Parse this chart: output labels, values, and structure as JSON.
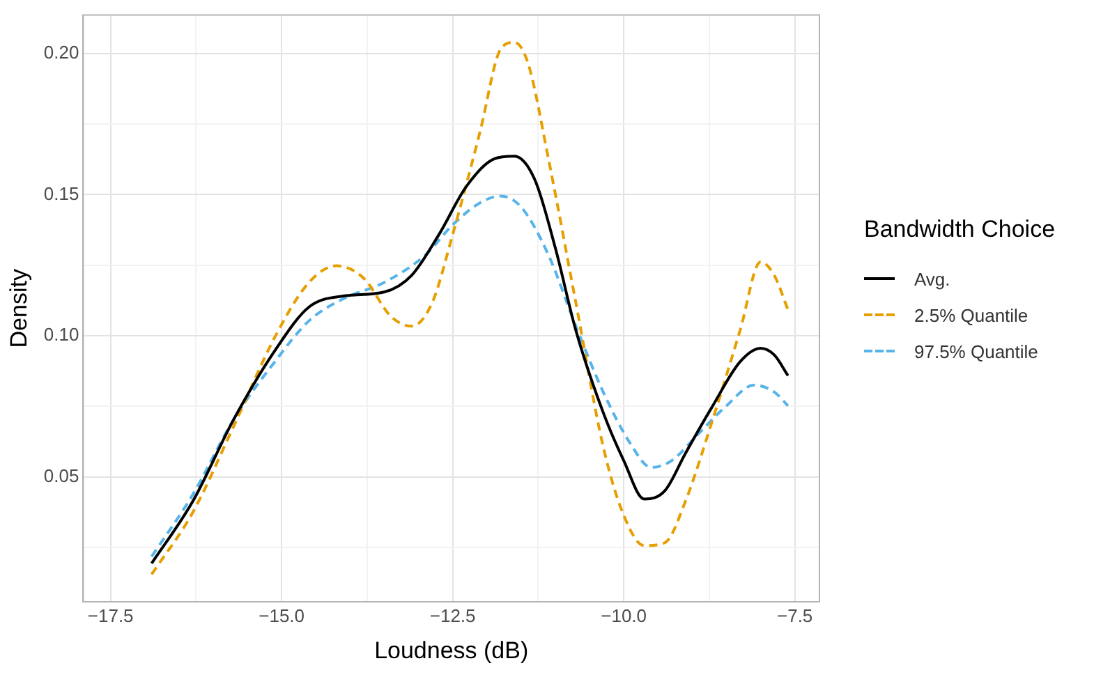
{
  "chart_data": {
    "type": "line",
    "xlabel": "Loudness (dB)",
    "ylabel": "Density",
    "legend_title": "Bandwidth Choice",
    "legend": "right",
    "grid": true,
    "xlim": [
      -17.9,
      -7.14
    ],
    "ylim": [
      0.0058,
      0.2136
    ],
    "xticks": [
      {
        "value": -17.5,
        "label": "−17.5"
      },
      {
        "value": -16.25,
        "label": null
      },
      {
        "value": -15,
        "label": "−15.0"
      },
      {
        "value": -13.75,
        "label": null
      },
      {
        "value": -12.5,
        "label": "−12.5"
      },
      {
        "value": -11.25,
        "label": null
      },
      {
        "value": -10,
        "label": "−10.0"
      },
      {
        "value": -8.75,
        "label": null
      },
      {
        "value": -7.5,
        "label": "−7.5"
      }
    ],
    "yticks": [
      {
        "value": 0.025,
        "label": null
      },
      {
        "value": 0.05,
        "label": "0.05"
      },
      {
        "value": 0.075,
        "label": null
      },
      {
        "value": 0.1,
        "label": "0.10"
      },
      {
        "value": 0.125,
        "label": null
      },
      {
        "value": 0.15,
        "label": "0.15"
      },
      {
        "value": 0.175,
        "label": null
      },
      {
        "value": 0.2,
        "label": "0.20"
      }
    ],
    "series": [
      {
        "name": "Avg.",
        "color": "#000000",
        "line_style": "solid",
        "x": [
          -16.9,
          -16.3,
          -15.7,
          -15.1,
          -14.6,
          -14.1,
          -13.5,
          -13.1,
          -12.7,
          -12.3,
          -11.9,
          -11.6,
          -11.3,
          -11.0,
          -10.7,
          -10.3,
          -10.0,
          -9.7,
          -9.4,
          -9.1,
          -8.7,
          -8.3,
          -8.0,
          -7.8,
          -7.6
        ],
        "values": [
          0.0194,
          0.0413,
          0.0704,
          0.0947,
          0.1102,
          0.1141,
          0.1155,
          0.1214,
          0.1359,
          0.1529,
          0.1626,
          0.1636,
          0.1553,
          0.1311,
          0.1019,
          0.0728,
          0.0558,
          0.0422,
          0.0451,
          0.0583,
          0.0752,
          0.0908,
          0.0956,
          0.0932,
          0.0859
        ]
      },
      {
        "name": "2.5% Quantile",
        "color": "#e69f00",
        "line_style": "dashed",
        "x": [
          -16.9,
          -16.3,
          -15.7,
          -15.1,
          -14.6,
          -14.2,
          -13.8,
          -13.4,
          -13.1,
          -12.8,
          -12.5,
          -12.1,
          -11.8,
          -11.6,
          -11.4,
          -11.1,
          -10.7,
          -10.3,
          -10.0,
          -9.7,
          -9.4,
          -9.1,
          -8.7,
          -8.3,
          -8.0,
          -7.8,
          -7.6
        ],
        "values": [
          0.0155,
          0.0374,
          0.068,
          0.0995,
          0.1189,
          0.1248,
          0.1204,
          0.1068,
          0.1034,
          0.1117,
          0.1359,
          0.1723,
          0.2015,
          0.2039,
          0.1966,
          0.1626,
          0.1117,
          0.0607,
          0.0364,
          0.0257,
          0.0267,
          0.0413,
          0.0704,
          0.1019,
          0.1262,
          0.1214,
          0.1092
        ]
      },
      {
        "name": "97.5% Quantile",
        "color": "#56b4e9",
        "line_style": "dashed",
        "x": [
          -16.9,
          -16.3,
          -15.7,
          -15.1,
          -14.6,
          -14.1,
          -13.5,
          -12.9,
          -12.5,
          -12.1,
          -11.8,
          -11.5,
          -11.1,
          -10.7,
          -10.3,
          -9.9,
          -9.6,
          -9.3,
          -8.9,
          -8.5,
          -8.1,
          -7.8,
          -7.6
        ],
        "values": [
          0.0218,
          0.0437,
          0.0704,
          0.0908,
          0.1053,
          0.1131,
          0.1189,
          0.1286,
          0.1393,
          0.1471,
          0.1495,
          0.1456,
          0.1286,
          0.1034,
          0.0801,
          0.0617,
          0.0534,
          0.0558,
          0.0655,
          0.0752,
          0.0825,
          0.0801,
          0.0752
        ]
      }
    ]
  }
}
